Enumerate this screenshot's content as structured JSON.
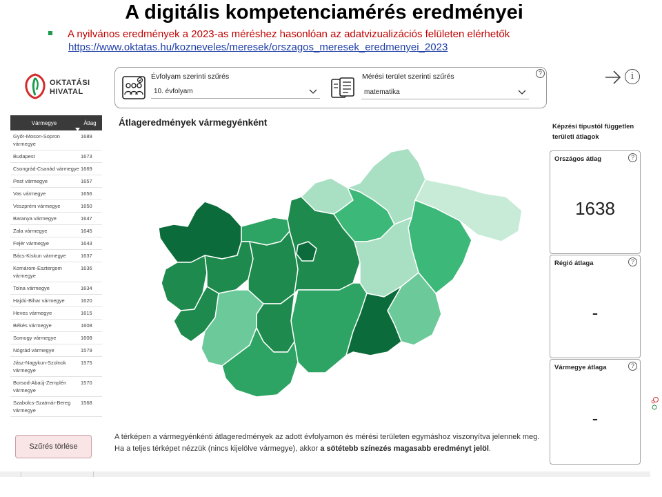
{
  "slide": {
    "title": "A digitális kompetenciamérés eredményei",
    "bullet_text": "A nyilvános eredmények a 2023-as méréshez hasonlóan az adatvizualizációs felületen elérhetők",
    "bullet_link": "https://www.oktatas.hu/kozneveles/meresek/orszagos_meresek_eredmenyei_2023"
  },
  "logo": {
    "line1": "OKTATÁSI",
    "line2": "HIVATAL"
  },
  "filters": {
    "grade": {
      "label": "Évfolyam szerinti szűrés",
      "value": "10. évfolyam"
    },
    "area": {
      "label": "Mérési terület szerinti szűrés",
      "value": "matematika"
    },
    "help": "?"
  },
  "nav": {
    "info": "i"
  },
  "table": {
    "headers": [
      "Vármegye",
      "Átlag"
    ],
    "rows": [
      [
        "Győr-Moson-Sopron vármegye",
        "1689"
      ],
      [
        "Budapest",
        "1673"
      ],
      [
        "Csongrád-Csanád vármegye",
        "1669"
      ],
      [
        "Pest vármegye",
        "1657"
      ],
      [
        "Vas vármegye",
        "1656"
      ],
      [
        "Veszprém vármegye",
        "1650"
      ],
      [
        "Baranya vármegye",
        "1647"
      ],
      [
        "Zala vármegye",
        "1645"
      ],
      [
        "Fejér vármegye",
        "1643"
      ],
      [
        "Bács-Kiskun vármegye",
        "1637"
      ],
      [
        "Komárom-Esztergom vármegye",
        "1636"
      ],
      [
        "Tolna vármegye",
        "1634"
      ],
      [
        "Hajdú-Bihar vármegye",
        "1620"
      ],
      [
        "Heves vármegye",
        "1615"
      ],
      [
        "Békés vármegye",
        "1608"
      ],
      [
        "Somogy vármegye",
        "1608"
      ],
      [
        "Nógrád vármegye",
        "1579"
      ],
      [
        "Jász-Nagykun-Szolnok vármegye",
        "1575"
      ],
      [
        "Borsod-Abaúj-Zemplén vármegye",
        "1570"
      ],
      [
        "Szabolcs-Szatmár-Bereg vármegye",
        "1568"
      ]
    ]
  },
  "clear_button": "Szűrés törlése",
  "map": {
    "title": "Átlageredmények vármegyénként",
    "colors": {
      "darkest": "#0b6b3a",
      "dark": "#1e8a4e",
      "mid": "#2ea464",
      "midlight": "#3cb878",
      "light": "#6cc99a",
      "pale": "#a9dfc3",
      "palest": "#c8ebd8"
    }
  },
  "footnote": {
    "text_before": "A térképen a vármegyénkénti átlageredmények az adott évfolyamon és mérési területen egymáshoz viszonyítva jelennek meg. Ha a teljes térképet nézzük (nincs kijelölve vármegye), akkor ",
    "bold": "a sötétebb színezés magasabb eredményt jelöl",
    "text_after": "."
  },
  "side": {
    "title": "Képzési típustól független területi átlagok",
    "cards": [
      {
        "label": "Országos átlag",
        "value": "1638"
      },
      {
        "label": "Régió átlaga",
        "value": "-"
      },
      {
        "label": "Vármegye átlaga",
        "value": "-"
      }
    ]
  }
}
